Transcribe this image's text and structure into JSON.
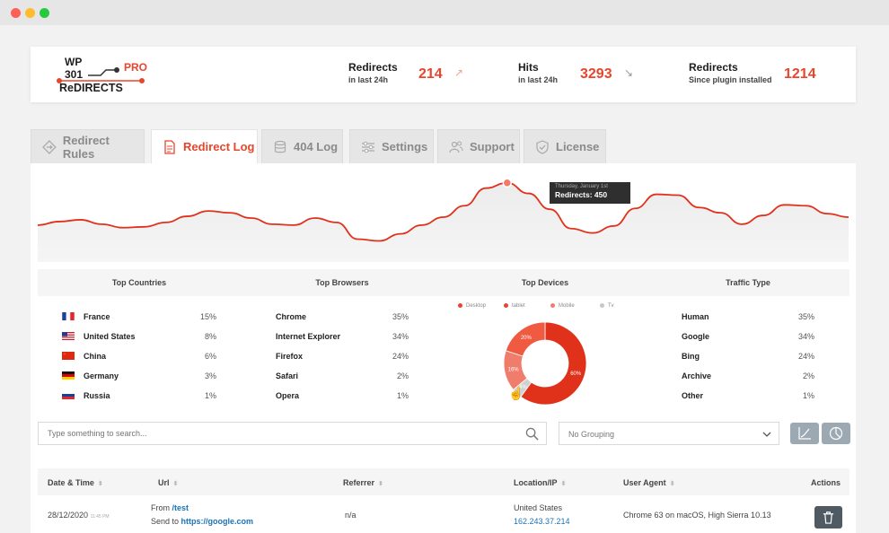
{
  "header": {
    "logo": {
      "line1": "WP",
      "line2": "301",
      "line3": "ReDIRECTS",
      "badge": "PRO"
    },
    "stats": [
      {
        "title": "Redirects",
        "subtitle": "in last 24h",
        "value": "214",
        "trend": "up"
      },
      {
        "title": "Hits",
        "subtitle": "in last 24h",
        "value": "3293",
        "trend": "down"
      },
      {
        "title": "Redirects",
        "subtitle": "Since plugin installed",
        "value": "1214"
      }
    ]
  },
  "tabs": [
    {
      "label": "Redirect Rules",
      "icon": "diamond-arrows-icon"
    },
    {
      "label": "Redirect Log",
      "icon": "document-icon",
      "active": true
    },
    {
      "label": "404 Log",
      "icon": "database-icon"
    },
    {
      "label": "Settings",
      "icon": "sliders-icon"
    },
    {
      "label": "Support",
      "icon": "people-icon"
    },
    {
      "label": "License",
      "icon": "shield-check-icon"
    }
  ],
  "chart_data": [
    {
      "type": "line",
      "series": [
        {
          "values": [
            210,
            230,
            240,
            215,
            195,
            200,
            225,
            260,
            290,
            280,
            250,
            215,
            210,
            250,
            225,
            130,
            120,
            160,
            210,
            255,
            320,
            420,
            450,
            390,
            300,
            190,
            165,
            205,
            305,
            385,
            380,
            310,
            280,
            215,
            265,
            325,
            320,
            275,
            255
          ]
        }
      ],
      "tooltip": {
        "date": "Thursday, January 1st",
        "label": "Redirects: 450"
      }
    },
    {
      "type": "pie",
      "title": "Top Devices",
      "legend": [
        "Desktop",
        "tablet",
        "Mobile",
        "Tv"
      ],
      "values": [
        60,
        20,
        16,
        4
      ],
      "labels": [
        "60%",
        "20%",
        "16%",
        "4%"
      ]
    }
  ],
  "stats": {
    "countries": {
      "title": "Top Countries",
      "rows": [
        {
          "name": "France",
          "pct": "15%",
          "flag": "france-flag-icon"
        },
        {
          "name": "United States",
          "pct": "8%",
          "flag": "usa-flag-icon"
        },
        {
          "name": "China",
          "pct": "6%",
          "flag": "china-flag-icon"
        },
        {
          "name": "Germany",
          "pct": "3%",
          "flag": "germany-flag-icon"
        },
        {
          "name": "Russia",
          "pct": "1%",
          "flag": "russia-flag-icon"
        }
      ]
    },
    "browsers": {
      "title": "Top Browsers",
      "rows": [
        {
          "name": "Chrome",
          "pct": "35%"
        },
        {
          "name": "Internet Explorer",
          "pct": "34%"
        },
        {
          "name": "Firefox",
          "pct": "24%"
        },
        {
          "name": "Safari",
          "pct": "2%"
        },
        {
          "name": "Opera",
          "pct": "1%"
        }
      ]
    },
    "traffic": {
      "title": "Traffic Type",
      "rows": [
        {
          "name": "Human",
          "pct": "35%"
        },
        {
          "name": "Google",
          "pct": "34%"
        },
        {
          "name": "Bing",
          "pct": "24%"
        },
        {
          "name": "Archive",
          "pct": "2%"
        },
        {
          "name": "Other",
          "pct": "1%"
        }
      ]
    }
  },
  "search": {
    "placeholder": "Type something to search..."
  },
  "grouping": {
    "selected": "No Grouping"
  },
  "table": {
    "columns": [
      "Date & Time",
      "Url",
      "Referrer",
      "Location/IP",
      "User Agent",
      "Actions"
    ],
    "rows": [
      {
        "date": "28/12/2020",
        "time": "11:45 PM",
        "from_label": "From",
        "from": "/test",
        "to_label": "Send to",
        "to": "https://google.com",
        "referrer": "n/a",
        "location": "United States",
        "ip": "162.243.37.214",
        "agent": "Chrome 63 on macOS, High Sierra 10.13"
      }
    ]
  },
  "colors": {
    "accent": "#e8452c",
    "tablet": "#f07d6b",
    "tv": "#c8c8c8"
  }
}
